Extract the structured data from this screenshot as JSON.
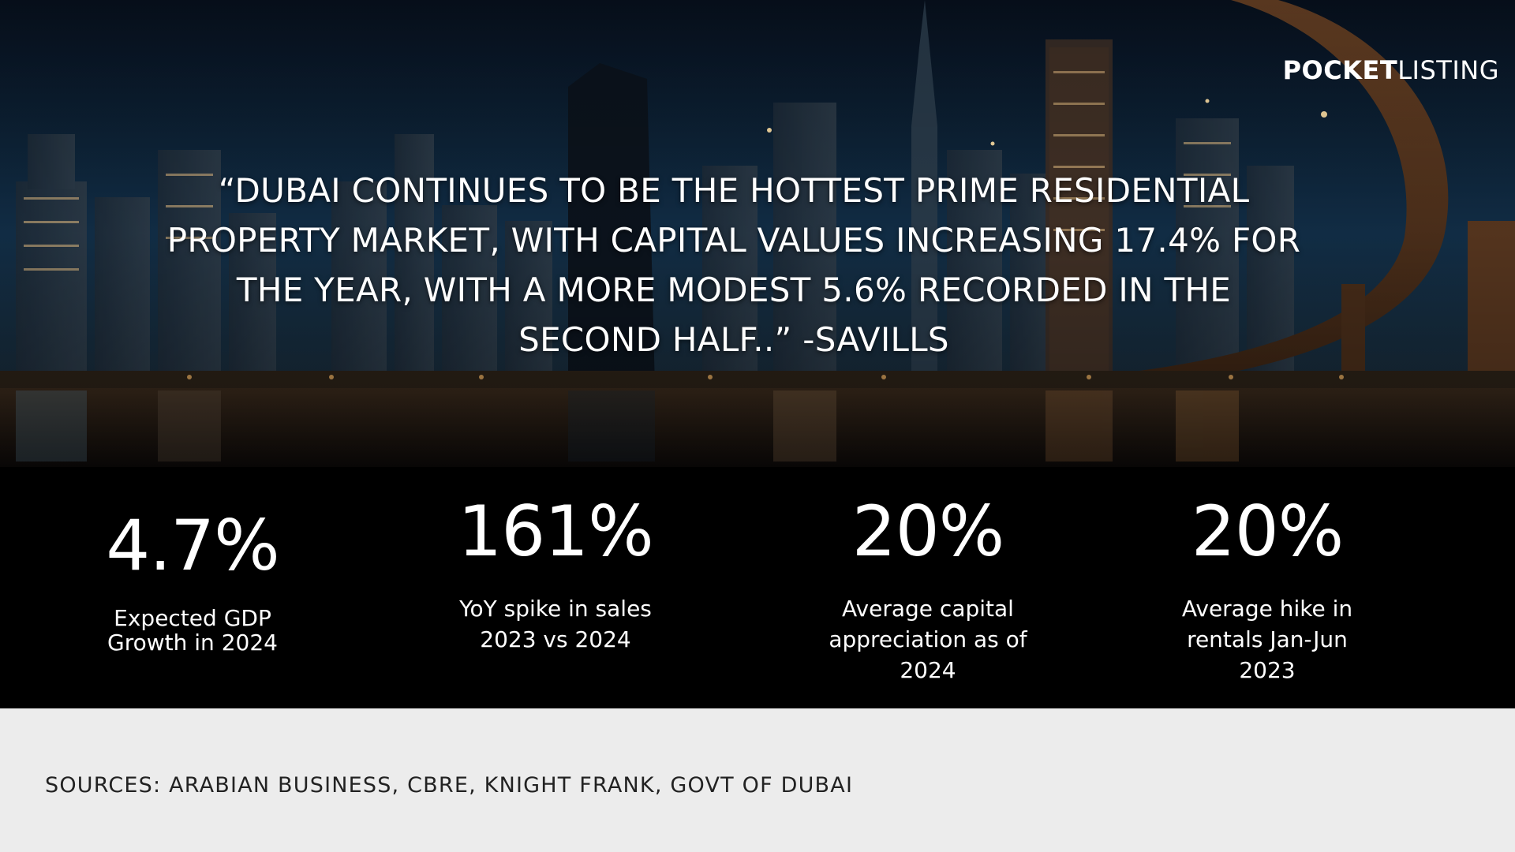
{
  "brand": {
    "logo_bold": "POCKET",
    "logo_light": "LISTING"
  },
  "hero": {
    "quote": "“DUBAI CONTINUES TO BE THE HOTTEST PRIME RESIDENTIAL PROPERTY MARKET, WITH CAPITAL VALUES INCREASING 17.4% FOR THE YEAR, WITH A MORE MODEST 5.6% RECORDED IN THE SECOND HALF..” -SAVILLS"
  },
  "stats": [
    {
      "value": "4.7%",
      "label": "Expected GDP\nGrowth in 2024"
    },
    {
      "value": "161%",
      "label": "YoY spike in sales\n2023 vs 2024"
    },
    {
      "value": "20%",
      "label": "Average capital\nappreciation as of\n2024"
    },
    {
      "value": "20%",
      "label": "Average hike in\nrentals Jan-Jun\n2023"
    }
  ],
  "footer": {
    "sources": "SOURCES: ARABIAN BUSINESS, CBRE, KNIGHT FRANK, GOVT OF DUBAI"
  },
  "colors": {
    "stats_background": "#000000",
    "footer_background": "#ececec",
    "text_light": "#ffffff",
    "text_dark": "#222222"
  }
}
